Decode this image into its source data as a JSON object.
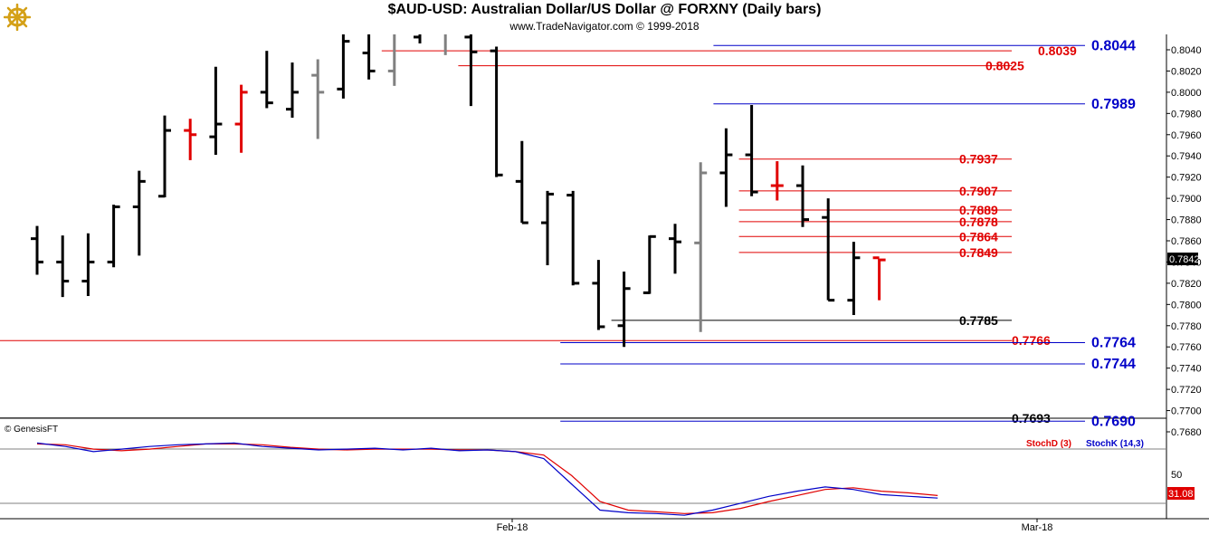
{
  "header": {
    "title": "$AUD-USD:  Australian Dollar/US Dollar @ FORXNY  (Daily bars)",
    "subtitle": "www.TradeNavigator.com © 1999-2018"
  },
  "indicator_panel": {
    "copyright": "© GenesisFT",
    "legend_d": "StochD (3)",
    "legend_k": "StochK (14,3)",
    "axis_label_50": "50",
    "current_value": "31.08"
  },
  "x_axis": {
    "labels": [
      "Feb-18",
      "Mar-18"
    ]
  },
  "price_axis": {
    "ticks": [
      "0.8040",
      "0.8020",
      "0.8000",
      "0.7980",
      "0.7960",
      "0.7940",
      "0.7920",
      "0.7900",
      "0.7880",
      "0.7860",
      "0.7840",
      "0.7820",
      "0.7800",
      "0.7780",
      "0.7760",
      "0.7740",
      "0.7720",
      "0.7700",
      "0.7680"
    ],
    "current_price": "0.7842"
  },
  "colors": {
    "up_bar": "#000000",
    "gray_bar": "#808080",
    "red_bar": "#e00000",
    "red_level": "#e00000",
    "blue_level": "#0000c8",
    "black_level": "#000000",
    "stoch_d": "#e00000",
    "stoch_k": "#0000c8"
  },
  "chart_data": {
    "type": "ohlc",
    "title": "$AUD-USD:  Australian Dollar/US Dollar @ FORXNY  (Daily bars)",
    "ylim": [
      0.767,
      0.8052
    ],
    "bars": [
      {
        "o": 0.7862,
        "h": 0.7874,
        "l": 0.7828,
        "c": 0.784,
        "col": "black"
      },
      {
        "o": 0.784,
        "h": 0.7865,
        "l": 0.7807,
        "c": 0.7822,
        "col": "black"
      },
      {
        "o": 0.7822,
        "h": 0.7867,
        "l": 0.7808,
        "c": 0.784,
        "col": "black"
      },
      {
        "o": 0.784,
        "h": 0.7894,
        "l": 0.7835,
        "c": 0.7892,
        "col": "black"
      },
      {
        "o": 0.7892,
        "h": 0.7926,
        "l": 0.7846,
        "c": 0.7916,
        "col": "black"
      },
      {
        "o": 0.7902,
        "h": 0.7978,
        "l": 0.7901,
        "c": 0.7964,
        "col": "black"
      },
      {
        "o": 0.7964,
        "h": 0.7975,
        "l": 0.7936,
        "c": 0.796,
        "col": "red"
      },
      {
        "o": 0.7958,
        "h": 0.8024,
        "l": 0.7941,
        "c": 0.797,
        "col": "black"
      },
      {
        "o": 0.797,
        "h": 0.8007,
        "l": 0.7943,
        "c": 0.8,
        "col": "red"
      },
      {
        "o": 0.8,
        "h": 0.8039,
        "l": 0.7985,
        "c": 0.799,
        "col": "black"
      },
      {
        "o": 0.7984,
        "h": 0.8028,
        "l": 0.7976,
        "c": 0.8,
        "col": "black"
      },
      {
        "o": 0.8016,
        "h": 0.8031,
        "l": 0.7956,
        "c": 0.8,
        "col": "gray"
      },
      {
        "o": 0.8003,
        "h": 0.8058,
        "l": 0.7994,
        "c": 0.8048,
        "col": "black"
      },
      {
        "o": 0.8037,
        "h": 0.8062,
        "l": 0.8012,
        "c": 0.802,
        "col": "black"
      },
      {
        "o": 0.802,
        "h": 0.8063,
        "l": 0.8006,
        "c": 0.8055,
        "col": "gray"
      },
      {
        "o": 0.8052,
        "h": 0.8063,
        "l": 0.8046,
        "c": 0.8056,
        "col": "black"
      },
      {
        "o": 0.8055,
        "h": 0.8063,
        "l": 0.8035,
        "c": 0.8055,
        "col": "gray"
      },
      {
        "o": 0.8052,
        "h": 0.8058,
        "l": 0.7987,
        "c": 0.8038,
        "col": "black"
      },
      {
        "o": 0.8039,
        "h": 0.8043,
        "l": 0.792,
        "c": 0.7922,
        "col": "black"
      },
      {
        "o": 0.7916,
        "h": 0.7954,
        "l": 0.7877,
        "c": 0.7877,
        "col": "black"
      },
      {
        "o": 0.7877,
        "h": 0.7907,
        "l": 0.7837,
        "c": 0.7904,
        "col": "black"
      },
      {
        "o": 0.7903,
        "h": 0.7907,
        "l": 0.7818,
        "c": 0.782,
        "col": "black"
      },
      {
        "o": 0.782,
        "h": 0.7842,
        "l": 0.7776,
        "c": 0.7779,
        "col": "black"
      },
      {
        "o": 0.778,
        "h": 0.7831,
        "l": 0.776,
        "c": 0.7815,
        "col": "black"
      },
      {
        "o": 0.7811,
        "h": 0.7865,
        "l": 0.781,
        "c": 0.7864,
        "col": "black"
      },
      {
        "o": 0.7862,
        "h": 0.7876,
        "l": 0.7829,
        "c": 0.7859,
        "col": "black"
      },
      {
        "o": 0.7858,
        "h": 0.7934,
        "l": 0.7774,
        "c": 0.7924,
        "col": "gray"
      },
      {
        "o": 0.7924,
        "h": 0.7966,
        "l": 0.7892,
        "c": 0.7941,
        "col": "black"
      },
      {
        "o": 0.7941,
        "h": 0.7988,
        "l": 0.7902,
        "c": 0.7906,
        "col": "black"
      },
      {
        "o": 0.7912,
        "h": 0.7935,
        "l": 0.7898,
        "c": 0.7912,
        "col": "red"
      },
      {
        "o": 0.7912,
        "h": 0.7931,
        "l": 0.7873,
        "c": 0.788,
        "col": "black"
      },
      {
        "o": 0.7882,
        "h": 0.79,
        "l": 0.7804,
        "c": 0.7804,
        "col": "black"
      },
      {
        "o": 0.7804,
        "h": 0.7859,
        "l": 0.779,
        "c": 0.7844,
        "col": "black"
      },
      {
        "o": 0.7844,
        "h": 0.7843,
        "l": 0.7804,
        "c": 0.7842,
        "col": "red"
      }
    ],
    "levels": [
      {
        "label": "0.8044",
        "value": 0.8044,
        "color": "blue",
        "x_from_bar": 27
      },
      {
        "label": "0.8039",
        "value": 0.8039,
        "color": "red",
        "x_from_bar": 14
      },
      {
        "label": "0.8025",
        "value": 0.8025,
        "color": "red",
        "x_from_bar": 17
      },
      {
        "label": "0.7989",
        "value": 0.7989,
        "color": "blue",
        "x_from_bar": 27
      },
      {
        "label": "0.7937",
        "value": 0.7937,
        "color": "red",
        "x_from_bar": 28
      },
      {
        "label": "0.7907",
        "value": 0.7907,
        "color": "red",
        "x_from_bar": 28
      },
      {
        "label": "0.7889",
        "value": 0.7889,
        "color": "red",
        "x_from_bar": 28
      },
      {
        "label": "0.7878",
        "value": 0.7878,
        "color": "red",
        "x_from_bar": 28
      },
      {
        "label": "0.7864",
        "value": 0.7864,
        "color": "red",
        "x_from_bar": 28
      },
      {
        "label": "0.7849",
        "value": 0.7849,
        "color": "red",
        "x_from_bar": 28
      },
      {
        "label": "0.7785",
        "value": 0.7785,
        "color": "black",
        "x_from_bar": 23
      },
      {
        "label": "0.7766",
        "value": 0.7766,
        "color": "red",
        "x_from_bar": -1
      },
      {
        "label": "0.7764",
        "value": 0.7764,
        "color": "blue",
        "x_from_bar": 21
      },
      {
        "label": "0.7744",
        "value": 0.7744,
        "color": "blue",
        "x_from_bar": 21
      },
      {
        "label": "0.7693",
        "value": 0.7693,
        "color": "black",
        "x_from_bar": -1
      },
      {
        "label": "0.7690",
        "value": 0.769,
        "color": "blue",
        "x_from_bar": 21
      }
    ],
    "stochastics": {
      "ylim": [
        0,
        100
      ],
      "k": [
        88,
        84,
        78,
        81,
        84,
        86,
        87,
        88,
        84,
        82,
        80,
        81,
        82,
        80,
        82,
        79,
        80,
        78,
        70,
        40,
        10,
        7,
        6,
        4,
        10,
        18,
        26,
        32,
        37,
        34,
        28,
        26,
        24
      ],
      "d": [
        87,
        86,
        81,
        79,
        81,
        84,
        87,
        87,
        86,
        83,
        81,
        80,
        81,
        81,
        81,
        80,
        80,
        78,
        74,
        50,
        20,
        10,
        8,
        6,
        7,
        12,
        20,
        27,
        34,
        36,
        32,
        30,
        27
      ]
    }
  }
}
